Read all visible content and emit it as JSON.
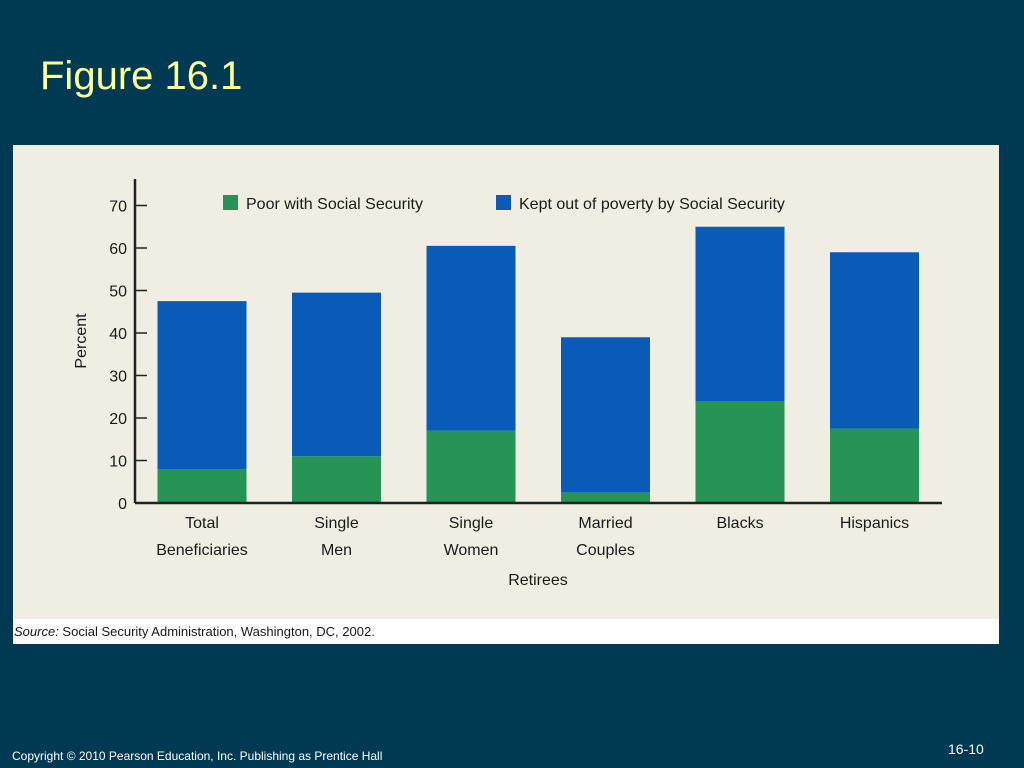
{
  "slide": {
    "title": "Figure 16.1",
    "copyright": "Copyright © 2010 Pearson Education, Inc.  Publishing as Prentice Hall",
    "slide_number": "16-10"
  },
  "source": {
    "label": "Source:",
    "text": " Social Security Administration, Washington, DC, 2002."
  },
  "colors": {
    "poor": "#259455",
    "kept": "#0a5ab8",
    "axis": "#222222",
    "text": "#1a1a1a"
  },
  "chart_data": {
    "type": "bar",
    "stacked": true,
    "categories": [
      [
        "Total",
        "Beneficiaries"
      ],
      [
        "Single",
        "Men"
      ],
      [
        "Single",
        "Women"
      ],
      [
        "Married",
        "Couples"
      ],
      [
        "Blacks"
      ],
      [
        "Hispanics"
      ]
    ],
    "series": [
      {
        "name": "Poor with Social Security",
        "values": [
          8,
          11,
          17,
          2.5,
          24,
          17.5
        ]
      },
      {
        "name": "Kept out of poverty by Social Security",
        "values": [
          39.5,
          38.5,
          43.5,
          36.5,
          41,
          41.5
        ]
      }
    ],
    "xlabel": "Retirees",
    "ylabel": "Percent",
    "ylim": [
      0,
      76
    ],
    "yticks": [
      0,
      10,
      20,
      30,
      40,
      50,
      60,
      70
    ],
    "legend_position": "top",
    "grid": false
  }
}
